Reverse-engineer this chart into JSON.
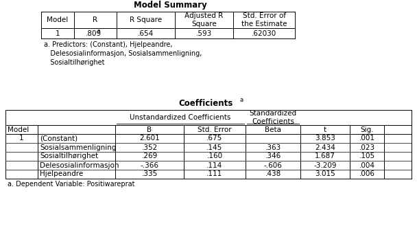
{
  "model_summary_title": "Model Summary",
  "model_summary_headers": [
    "Model",
    "R",
    "R Square",
    "Adjusted R\nSquare",
    "Std. Error of\nthe Estimate"
  ],
  "model_summary_footnote": "a. Predictors: (Constant), Hjelpeandre,\n   Delesosialinformasjon, Sosialsammenligning,\n   Sosialtilhørighet",
  "coeff_title": "Coefficients",
  "coeff_title_super": "a",
  "coeff_rows": [
    [
      "1",
      "(Constant)",
      "2.601",
      ".675",
      "",
      "3.853",
      ".001"
    ],
    [
      "",
      "Sosialsammenligning",
      ".352",
      ".145",
      ".363",
      "2.434",
      ".023"
    ],
    [
      "",
      "Sosialtilhørighet",
      ".269",
      ".160",
      ".346",
      "1.687",
      ".105"
    ],
    [
      "",
      "Delesosialinformasjon",
      "-.366",
      ".114",
      "-.606",
      "-3.209",
      ".004"
    ],
    [
      "",
      "Hjelpeandre",
      ".335",
      ".111",
      ".438",
      "3.015",
      ".006"
    ]
  ],
  "coeff_footnote": "a. Dependent Variable: Positiwareprat",
  "background_color": "#ffffff",
  "line_color": "#000000",
  "font_size": 7.5,
  "title_font_size": 8.5
}
